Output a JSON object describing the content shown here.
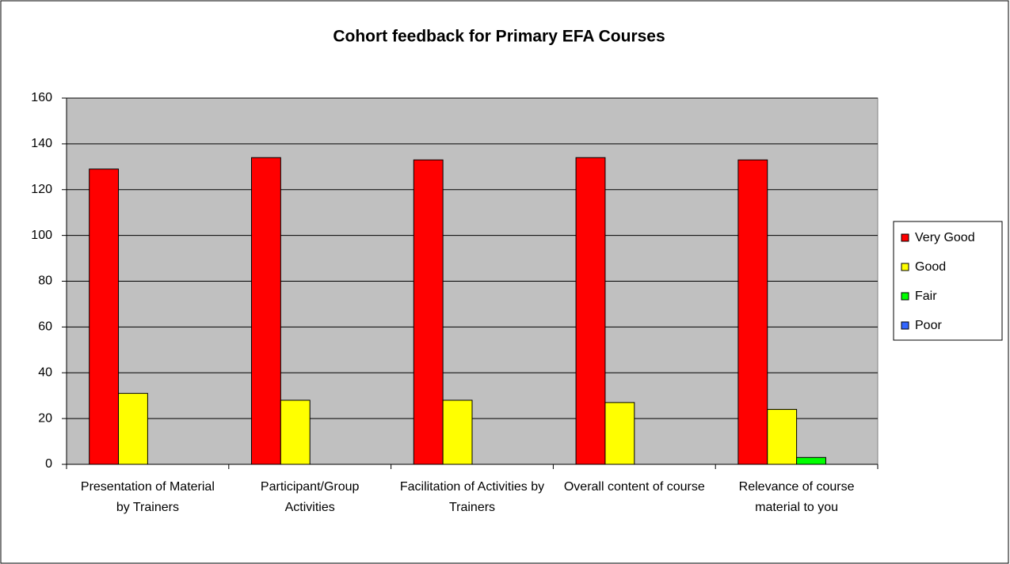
{
  "chart_data": {
    "type": "bar",
    "title": "Cohort feedback for Primary EFA Courses",
    "categories": [
      "Presentation of Material by Trainers",
      "Participant/Group Activities",
      "Facilitation of Activities by Trainers",
      "Overall content of course",
      "Relevance of course material to you"
    ],
    "series": [
      {
        "name": "Very Good",
        "color": "#ff0000",
        "values": [
          129,
          134,
          133,
          134,
          133
        ]
      },
      {
        "name": "Good",
        "color": "#ffff00",
        "values": [
          31,
          28,
          28,
          27,
          24
        ]
      },
      {
        "name": "Fair",
        "color": "#00ff00",
        "values": [
          0,
          0,
          0,
          0,
          3
        ]
      },
      {
        "name": "Poor",
        "color": "#3366ff",
        "values": [
          0,
          0,
          0,
          0,
          0
        ]
      }
    ],
    "ylim": [
      0,
      160
    ],
    "yticks": [
      0,
      20,
      40,
      60,
      80,
      100,
      120,
      140,
      160
    ],
    "grid": true,
    "legend": "right"
  }
}
